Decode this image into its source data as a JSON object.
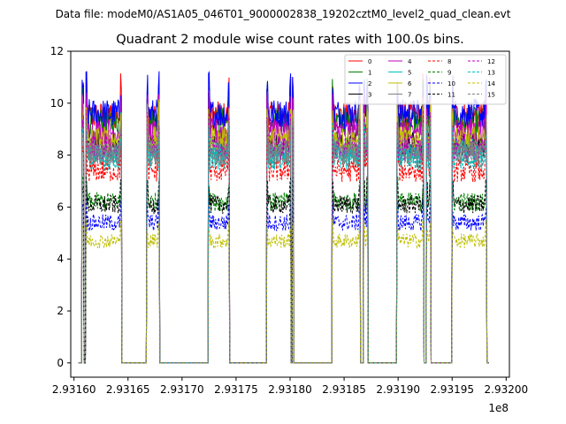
{
  "chart_data": {
    "type": "line",
    "suptitle": "Data file: modeM0/AS1A05_046T01_9000002838_19202cztM0_level2_quad_clean.evt",
    "title": "Quadrant 2 module wise count rates with 100.0s bins.",
    "xlabel": "",
    "ylabel": "",
    "x_offset_label": "1e8",
    "xlim": [
      2.931597,
      2.932003
    ],
    "ylim": [
      -0.55,
      12.0
    ],
    "xticks": [
      2.9316,
      2.93165,
      2.9317,
      2.93175,
      2.9318,
      2.93185,
      2.9319,
      2.93195,
      2.932
    ],
    "xtick_labels": [
      "2.93160",
      "2.93165",
      "2.93170",
      "2.93175",
      "2.93180",
      "2.93185",
      "2.93190",
      "2.93195",
      "2.93200"
    ],
    "yticks": [
      0,
      2,
      4,
      6,
      8,
      10,
      12
    ],
    "ytick_labels": [
      "0",
      "2",
      "4",
      "6",
      "8",
      "10",
      "12"
    ],
    "grid": false,
    "legend_position": "top-right",
    "on_intervals": [
      [
        2.931607,
        2.931609
      ],
      [
        2.931611,
        2.931644
      ],
      [
        2.931667,
        2.931679
      ],
      [
        2.931724,
        2.931744
      ],
      [
        2.931778,
        2.931801
      ],
      [
        2.931802,
        2.931803
      ],
      [
        2.931839,
        2.931865
      ],
      [
        2.931868,
        2.931872
      ],
      [
        2.931899,
        2.931924
      ],
      [
        2.931926,
        2.93193
      ],
      [
        2.93195,
        2.931982
      ]
    ],
    "series": [
      {
        "name": "0",
        "color": "#ff0000",
        "dash": "solid",
        "level": 9.5
      },
      {
        "name": "1",
        "color": "#008000",
        "dash": "solid",
        "level": 9.3
      },
      {
        "name": "2",
        "color": "#0000ff",
        "dash": "solid",
        "level": 9.6
      },
      {
        "name": "3",
        "color": "#000000",
        "dash": "solid",
        "level": 8.4
      },
      {
        "name": "4",
        "color": "#bf00bf",
        "dash": "solid",
        "level": 8.9
      },
      {
        "name": "5",
        "color": "#00bfbf",
        "dash": "solid",
        "level": 8.2
      },
      {
        "name": "6",
        "color": "#bfbf00",
        "dash": "solid",
        "level": 8.6
      },
      {
        "name": "7",
        "color": "#808080",
        "dash": "solid",
        "level": 8.0
      },
      {
        "name": "8",
        "color": "#ff0000",
        "dash": "dashed",
        "level": 7.4
      },
      {
        "name": "9",
        "color": "#008000",
        "dash": "dashed",
        "level": 6.2
      },
      {
        "name": "10",
        "color": "#0000ff",
        "dash": "dashed",
        "level": 5.4
      },
      {
        "name": "11",
        "color": "#000000",
        "dash": "dashed",
        "level": 6.1
      },
      {
        "name": "12",
        "color": "#bf00bf",
        "dash": "dashed",
        "level": 8.3
      },
      {
        "name": "13",
        "color": "#00bfbf",
        "dash": "dashed",
        "level": 7.9
      },
      {
        "name": "14",
        "color": "#bfbf00",
        "dash": "dashed",
        "level": 4.7
      },
      {
        "name": "15",
        "color": "#808080",
        "dash": "dashed",
        "level": 8.1
      }
    ]
  }
}
